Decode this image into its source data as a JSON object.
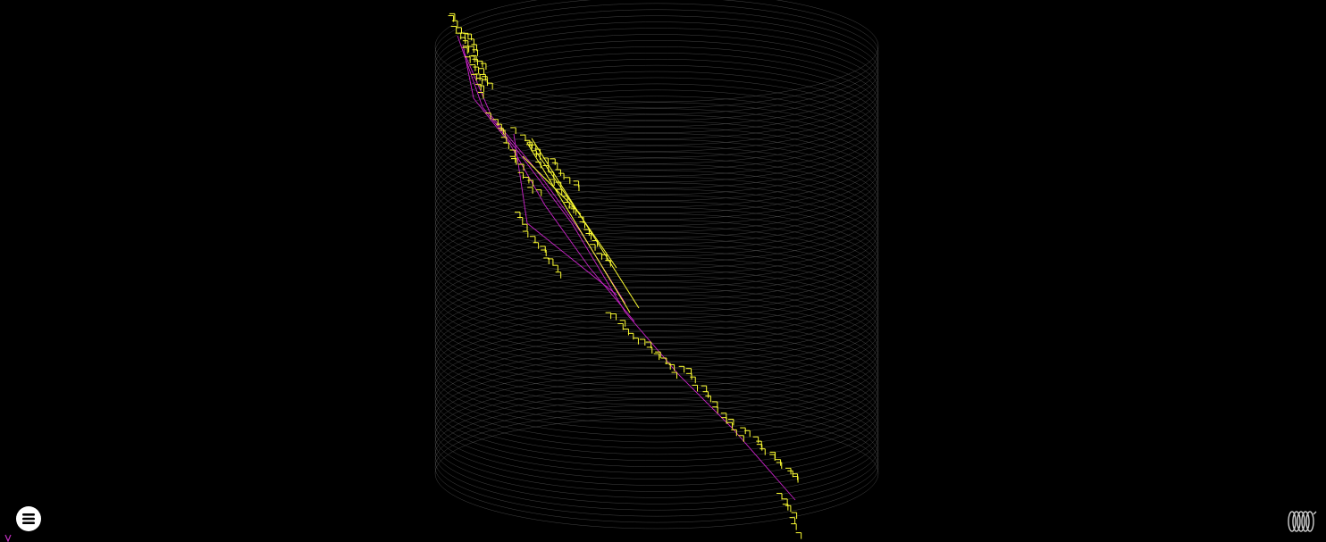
{
  "app": {
    "menu_icon": "menu-icon",
    "logo_icon": "coil-logo-icon",
    "axes_icon": "axes-gizmo-icon"
  },
  "colors": {
    "background": "#000000",
    "detector_wire": "#5a5a5a",
    "hits": "#ffff33",
    "tracks": "#cc22cc",
    "menu_button": "#ffffff"
  }
}
